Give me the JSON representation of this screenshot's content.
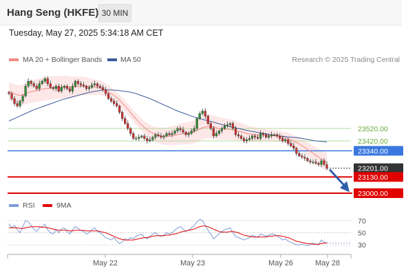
{
  "header": {
    "title": "Hang Seng (HKFE)",
    "timeframe": "30 MIN"
  },
  "timestamp": "Tuesday, May 27, 2025 5:34:18 AM CET",
  "legend": {
    "bollinger": "MA 20 + Bollinger Bands",
    "ma50": "MA 50",
    "credit": "Research © 2025 Trading Central",
    "rsi": "RSI",
    "rsi_ma": "9MA"
  },
  "colors": {
    "bollinger": "#f28b82",
    "bollinger_fill": "#fde3e3",
    "ma50": "#3a5a9c",
    "resistance": "#b5d99c",
    "pivot": "#3a78e0",
    "support": "#e00000",
    "last_price": "#333333",
    "candle_up": "#2e8b2e",
    "candle_down": "#d03030",
    "rsi": "#7c9ad6",
    "rsi_ma": "#e00000",
    "arrow": "#2f5fa8"
  },
  "chart_data": [
    {
      "type": "candlestick",
      "title": "",
      "ylim": [
        22950,
        24000
      ],
      "x_tick_labels": [
        "May 22",
        "May 23",
        "May 26",
        "May 28"
      ],
      "levels": [
        {
          "label": "23520.00",
          "value": 23520,
          "kind": "resistance"
        },
        {
          "label": "23420.00",
          "value": 23420,
          "kind": "resistance"
        },
        {
          "label": "23340.00",
          "value": 23340,
          "kind": "pivot"
        },
        {
          "label": "23201.00",
          "value": 23201,
          "kind": "last"
        },
        {
          "label": "23130.00",
          "value": 23130,
          "kind": "support"
        },
        {
          "label": "23000.00",
          "value": 23000,
          "kind": "support"
        }
      ],
      "series": [
        {
          "name": "Price",
          "values": [
            23800,
            23760,
            23720,
            23700,
            23740,
            23780,
            23860,
            23900,
            23880,
            23860,
            23840,
            23880,
            23900,
            23920,
            23880,
            23850,
            23840,
            23860,
            23820,
            23850,
            23860,
            23840,
            23820,
            23860,
            23900,
            23880,
            23870,
            23860,
            23840,
            23850,
            23870,
            23880,
            23860,
            23850,
            23830,
            23800,
            23760,
            23740,
            23720,
            23700,
            23650,
            23600,
            23560,
            23520,
            23480,
            23440,
            23440,
            23450,
            23460,
            23440,
            23420,
            23430,
            23450,
            23470,
            23460,
            23450,
            23460,
            23480,
            23470,
            23480,
            23500,
            23520,
            23510,
            23490,
            23470,
            23480,
            23500,
            23520,
            23600,
            23640,
            23660,
            23620,
            23560,
            23520,
            23460,
            23480,
            23500,
            23520,
            23540,
            23550,
            23560,
            23520,
            23470,
            23460,
            23440,
            23420,
            23430,
            23440,
            23460,
            23450,
            23440,
            23480,
            23470,
            23450,
            23460,
            23470,
            23470,
            23460,
            23440,
            23420,
            23430,
            23400,
            23380,
            23360,
            23320,
            23300,
            23290,
            23280,
            23260,
            23250,
            23250,
            23240,
            23230,
            23260,
            23230,
            23201
          ]
        },
        {
          "name": "MA 20",
          "values": [
            23820,
            23810,
            23800,
            23790,
            23785,
            23790,
            23800,
            23810,
            23815,
            23820,
            23825,
            23830,
            23835,
            23840,
            23842,
            23844,
            23846,
            23848,
            23850,
            23852,
            23853,
            23852,
            23851,
            23852,
            23855,
            23858,
            23860,
            23862,
            23860,
            23858,
            23855,
            23852,
            23850,
            23845,
            23838,
            23828,
            23815,
            23800,
            23785,
            23768,
            23748,
            23725,
            23700,
            23675,
            23648,
            23620,
            23595,
            23570,
            23548,
            23528,
            23510,
            23495,
            23482,
            23472,
            23465,
            23460,
            23458,
            23458,
            23460,
            23462,
            23465,
            23470,
            23475,
            23478,
            23480,
            23483,
            23488,
            23495,
            23505,
            23515,
            23525,
            23532,
            23535,
            23535,
            23530,
            23525,
            23520,
            23518,
            23516,
            23515,
            23512,
            23508,
            23503,
            23498,
            23492,
            23486,
            23480,
            23476,
            23472,
            23470,
            23468,
            23468,
            23467,
            23465,
            23463,
            23462,
            23460,
            23458,
            23455,
            23450,
            23445,
            23438,
            23430,
            23420,
            23408,
            23395,
            23382,
            23368,
            23352,
            23336,
            23320,
            23305,
            23290,
            23275,
            23262,
            23250
          ]
        },
        {
          "name": "MA 50",
          "values": [
            23580,
            23590,
            23600,
            23610,
            23620,
            23630,
            23640,
            23650,
            23660,
            23670,
            23678,
            23686,
            23694,
            23702,
            23710,
            23718,
            23726,
            23734,
            23742,
            23750,
            23756,
            23762,
            23768,
            23774,
            23780,
            23786,
            23792,
            23798,
            23804,
            23810,
            23814,
            23818,
            23822,
            23826,
            23830,
            23830,
            23830,
            23829,
            23828,
            23827,
            23824,
            23821,
            23818,
            23815,
            23812,
            23806,
            23800,
            23792,
            23784,
            23776,
            23768,
            23760,
            23750,
            23740,
            23730,
            23720,
            23710,
            23700,
            23690,
            23680,
            23670,
            23660,
            23652,
            23644,
            23636,
            23628,
            23620,
            23612,
            23606,
            23600,
            23594,
            23588,
            23582,
            23576,
            23570,
            23564,
            23558,
            23552,
            23546,
            23540,
            23535,
            23530,
            23525,
            23520,
            23515,
            23510,
            23505,
            23500,
            23496,
            23492,
            23488,
            23484,
            23480,
            23476,
            23472,
            23468,
            23464,
            23460,
            23458,
            23456,
            23454,
            23452,
            23450,
            23448,
            23446,
            23444,
            23440,
            23436,
            23432,
            23428,
            23424,
            23420,
            23418,
            23416,
            23414,
            23412
          ]
        }
      ]
    },
    {
      "type": "line",
      "title": "",
      "ylim": [
        20,
        80
      ],
      "y_tick_labels": [
        "70",
        "50",
        "30"
      ],
      "y_ticks": [
        70,
        50,
        30
      ],
      "series": [
        {
          "name": "RSI",
          "values": [
            65,
            58,
            62,
            55,
            50,
            60,
            70,
            68,
            62,
            56,
            52,
            58,
            60,
            64,
            55,
            50,
            48,
            55,
            50,
            56,
            58,
            52,
            48,
            55,
            60,
            57,
            54,
            52,
            48,
            50,
            55,
            58,
            52,
            50,
            46,
            42,
            40,
            38,
            42,
            36,
            32,
            35,
            40,
            38,
            42,
            40,
            44,
            46,
            48,
            42,
            40,
            44,
            48,
            50,
            46,
            44,
            46,
            50,
            48,
            50,
            54,
            58,
            60,
            56,
            52,
            54,
            58,
            62,
            68,
            72,
            70,
            62,
            54,
            48,
            40,
            44,
            48,
            52,
            55,
            56,
            58,
            50,
            44,
            42,
            40,
            38,
            40,
            42,
            46,
            44,
            42,
            48,
            46,
            44,
            46,
            48,
            47,
            45,
            42,
            38,
            40,
            36,
            34,
            32,
            30,
            30,
            31,
            30,
            29,
            30,
            33,
            31,
            30,
            38,
            34,
            33
          ]
        },
        {
          "name": "9MA",
          "values": [
            58,
            58,
            58,
            58,
            57,
            57,
            58,
            59,
            60,
            60,
            60,
            60,
            59,
            59,
            58,
            57,
            56,
            55,
            54,
            54,
            54,
            54,
            53,
            53,
            54,
            54,
            54,
            54,
            53,
            53,
            53,
            53,
            53,
            52,
            51,
            50,
            48,
            46,
            44,
            42,
            40,
            39,
            38,
            38,
            38,
            38,
            39,
            40,
            41,
            42,
            42,
            43,
            44,
            45,
            45,
            45,
            45,
            46,
            46,
            47,
            48,
            49,
            51,
            52,
            53,
            54,
            55,
            56,
            58,
            60,
            61,
            61,
            60,
            58,
            56,
            54,
            52,
            51,
            51,
            51,
            52,
            52,
            51,
            50,
            48,
            46,
            45,
            44,
            43,
            43,
            43,
            43,
            43,
            43,
            44,
            44,
            45,
            45,
            45,
            44,
            43,
            42,
            40,
            38,
            36,
            35,
            34,
            33,
            32,
            32,
            31,
            31,
            31,
            32,
            33,
            33
          ]
        }
      ]
    }
  ]
}
